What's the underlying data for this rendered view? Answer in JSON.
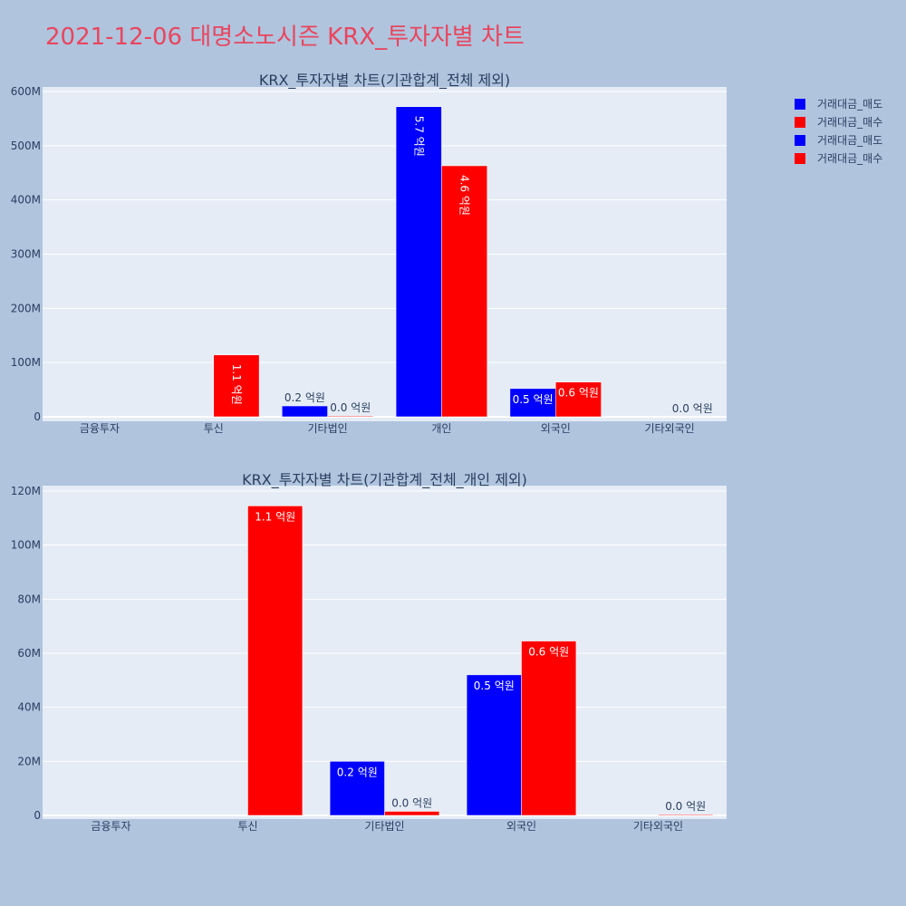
{
  "title": "2021-12-06 대명소노시즌 KRX_투자자별 차트",
  "colors": {
    "sell": "#0000ff",
    "buy": "#ff0000",
    "title": "#e8465e",
    "plot_bg": "#e5ecf6",
    "page_bg": "#b0c4de"
  },
  "legend": {
    "placement": "top-right",
    "items": [
      {
        "label": "거래대금_매도",
        "color": "#0000ff"
      },
      {
        "label": "거래대금_매수",
        "color": "#ff0000"
      },
      {
        "label": "거래대금_매도",
        "color": "#0000ff"
      },
      {
        "label": "거래대금_매수",
        "color": "#ff0000"
      }
    ]
  },
  "chart_data": [
    {
      "type": "bar",
      "title": "KRX_투자자별 차트(기관합계_전체 제외)",
      "categories": [
        "금융투자",
        "투신",
        "기타법인",
        "개인",
        "외국인",
        "기타외국인"
      ],
      "ylim": [
        0,
        600
      ],
      "ytick_values": [
        0,
        100,
        200,
        300,
        400,
        500,
        600
      ],
      "ytick_labels": [
        "0",
        "100M",
        "200M",
        "300M",
        "400M",
        "500M",
        "600M"
      ],
      "grid": true,
      "series": [
        {
          "name": "거래대금_매도",
          "color": "#0000ff",
          "values": [
            0,
            0,
            20,
            572,
            52,
            0
          ],
          "labels": [
            "",
            "",
            "0.2 억원",
            "5.7 억원",
            "0.5 억원",
            ""
          ]
        },
        {
          "name": "거래대금_매수",
          "color": "#ff0000",
          "values": [
            0,
            114,
            1.5,
            463,
            64,
            0.3
          ],
          "labels": [
            "",
            "1.1 억원",
            "0.0 억원",
            "4.6 억원",
            "0.6 억원",
            "0.0 억원"
          ]
        }
      ]
    },
    {
      "type": "bar",
      "title": "KRX_투자자별 차트(기관합계_전체_개인 제외)",
      "categories": [
        "금융투자",
        "투신",
        "기타법인",
        "외국인",
        "기타외국인"
      ],
      "ylim": [
        0,
        120
      ],
      "ytick_values": [
        0,
        20,
        40,
        60,
        80,
        100,
        120
      ],
      "ytick_labels": [
        "0",
        "20M",
        "40M",
        "60M",
        "80M",
        "100M",
        "120M"
      ],
      "grid": true,
      "series": [
        {
          "name": "거래대금_매도",
          "color": "#0000ff",
          "values": [
            0,
            0,
            20,
            52,
            0
          ],
          "labels": [
            "",
            "",
            "0.2 억원",
            "0.5 억원",
            ""
          ]
        },
        {
          "name": "거래대금_매수",
          "color": "#ff0000",
          "values": [
            0,
            114.5,
            1.5,
            64.5,
            0.3
          ],
          "labels": [
            "",
            "1.1 억원",
            "0.0 억원",
            "0.6 억원",
            "0.0 억원"
          ]
        }
      ]
    }
  ]
}
